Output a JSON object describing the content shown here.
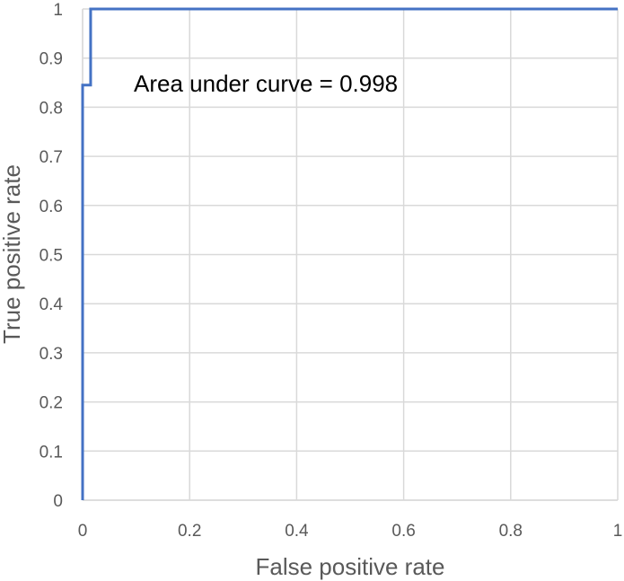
{
  "chart_data": {
    "type": "line",
    "title": "",
    "xlabel": "False positive rate",
    "ylabel": "True positive rate",
    "xlim": [
      0,
      1
    ],
    "ylim": [
      0,
      1
    ],
    "x_ticks": [
      "0",
      "0.2",
      "0.4",
      "0.6",
      "0.8",
      "1"
    ],
    "y_ticks": [
      "0",
      "0.1",
      "0.2",
      "0.3",
      "0.4",
      "0.5",
      "0.6",
      "0.7",
      "0.8",
      "0.9",
      "1"
    ],
    "grid": true,
    "series": [
      {
        "color": "#4472c4",
        "x": [
          0,
          0,
          0.015,
          0.015,
          1
        ],
        "y": [
          0,
          0.845,
          0.845,
          1,
          1
        ]
      }
    ],
    "annotation": "Area under curve = 0.998"
  }
}
